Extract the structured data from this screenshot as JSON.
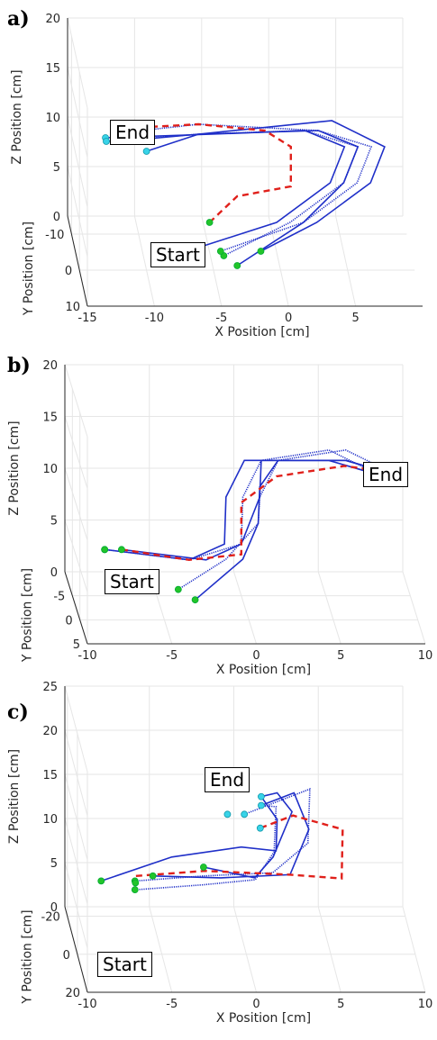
{
  "chart_data": [
    {
      "panel_label": "a)",
      "type": "line",
      "projection": "3d",
      "xlabel": "X Position [cm]",
      "ylabel": "Y Position [cm]",
      "zlabel": "Z Position [cm]",
      "xticks": [
        "-15",
        "-10",
        "-5",
        "0",
        "5"
      ],
      "yticks": [
        "-10",
        "0",
        "10"
      ],
      "zticks": [
        "0",
        "5",
        "10",
        "15",
        "20"
      ],
      "xlim": [
        -15,
        10
      ],
      "ylim": [
        -15,
        10
      ],
      "zlim": [
        0,
        20
      ],
      "grid": true,
      "annotations": [
        "End",
        "Start"
      ],
      "reference_color": "#e0201b",
      "trajectory_color": "#1f2fc8",
      "start_marker_color": "#22c42a",
      "end_marker_color": "#38d3e8",
      "reference_path": [
        [
          -5,
          -5,
          3
        ],
        [
          -3,
          -4,
          6
        ],
        [
          1,
          -4,
          7
        ],
        [
          1,
          -4,
          11
        ],
        [
          -1,
          -3,
          13
        ],
        [
          -6,
          -2,
          14
        ],
        [
          -11,
          -1,
          14
        ]
      ],
      "trajectories": [
        [
          [
            -6,
            -6,
            0
          ],
          [
            0,
            -5,
            3
          ],
          [
            4,
            -5,
            7
          ],
          [
            5,
            -4,
            11
          ],
          [
            2,
            -3,
            13
          ],
          [
            -5,
            -2,
            13
          ],
          [
            -13,
            -1,
            13
          ]
        ],
        [
          [
            -4,
            -4,
            0
          ],
          [
            1,
            -5,
            3
          ],
          [
            5,
            -5,
            7
          ],
          [
            6,
            -4,
            11
          ],
          [
            2,
            -3,
            13
          ],
          [
            -6,
            -2,
            13
          ],
          [
            -13,
            0,
            13
          ]
        ],
        [
          [
            -3,
            -4,
            -1
          ],
          [
            2,
            -5,
            3
          ],
          [
            5,
            -5,
            7
          ],
          [
            6,
            -4,
            11
          ],
          [
            3,
            -3,
            13
          ],
          [
            -6,
            -2,
            13
          ],
          [
            -12,
            0,
            13
          ]
        ],
        [
          [
            -4,
            -8,
            -1
          ],
          [
            2,
            -5,
            3
          ],
          [
            6,
            -5,
            7
          ],
          [
            7,
            -4,
            11
          ],
          [
            3,
            -3,
            13
          ],
          [
            -6,
            -2,
            14
          ],
          [
            -11,
            0,
            14
          ]
        ],
        [
          [
            -1,
            -8,
            -1
          ],
          [
            3,
            -5,
            3
          ],
          [
            7,
            -5,
            7
          ],
          [
            8,
            -4,
            11
          ],
          [
            4,
            -3,
            14
          ],
          [
            -6,
            -2,
            13
          ],
          [
            -10,
            0,
            12
          ]
        ]
      ],
      "start_points": [
        [
          -6,
          -6,
          0
        ],
        [
          -4,
          -4,
          0
        ],
        [
          -3,
          -4,
          -1
        ],
        [
          -4,
          -8,
          -1
        ],
        [
          -1,
          -8,
          -1
        ],
        [
          -5,
          -5,
          3
        ]
      ],
      "end_points": [
        [
          -13,
          -1,
          13
        ],
        [
          -13,
          0,
          13
        ],
        [
          -12,
          0,
          13
        ],
        [
          -11,
          0,
          14
        ],
        [
          -10,
          0,
          12
        ]
      ]
    },
    {
      "panel_label": "b)",
      "type": "line",
      "projection": "3d",
      "xlabel": "X Position [cm]",
      "ylabel": "Y Position [cm]",
      "zlabel": "Z Position [cm]",
      "xticks": [
        "-10",
        "-5",
        "0",
        "5",
        "10"
      ],
      "yticks": [
        "-5",
        "0",
        "5"
      ],
      "zticks": [
        "0",
        "5",
        "10",
        "15",
        "20"
      ],
      "xlim": [
        -10,
        10
      ],
      "ylim": [
        -10,
        5
      ],
      "zlim": [
        0,
        20
      ],
      "grid": true,
      "annotations": [
        "End",
        "Start"
      ],
      "reference_color": "#e0201b",
      "trajectory_color": "#1f2fc8",
      "start_marker_color": "#22c42a",
      "end_marker_color": "#38d3e8",
      "reference_path": [
        [
          -7,
          -6,
          4
        ],
        [
          -3,
          -6,
          3
        ],
        [
          0,
          -5,
          4
        ],
        [
          0,
          -5,
          9
        ],
        [
          2,
          -4,
          12
        ],
        [
          6,
          -4,
          13
        ],
        [
          8,
          -3,
          13
        ]
      ],
      "trajectories": [
        [
          [
            -8,
            -6,
            4
          ],
          [
            -3,
            -6,
            3
          ],
          [
            -1,
            -5,
            5
          ],
          [
            -1,
            -4,
            10
          ],
          [
            0,
            -3,
            14
          ],
          [
            5,
            -3,
            14
          ],
          [
            8,
            -2,
            13
          ]
        ],
        [
          [
            -8,
            -6,
            4
          ],
          [
            -3,
            -6,
            3
          ],
          [
            0,
            -5,
            5
          ],
          [
            0,
            -4,
            10
          ],
          [
            1,
            -3,
            14
          ],
          [
            5,
            -3,
            15
          ],
          [
            8,
            -2,
            13
          ]
        ],
        [
          [
            -7,
            -6,
            4
          ],
          [
            -2,
            -6,
            3
          ],
          [
            0,
            -5,
            5
          ],
          [
            1,
            -4,
            10
          ],
          [
            1,
            -3,
            14
          ],
          [
            6,
            -3,
            14
          ],
          [
            9,
            -2,
            13
          ]
        ],
        [
          [
            -4,
            -2,
            2
          ],
          [
            -1,
            -4,
            4
          ],
          [
            1,
            -5,
            7
          ],
          [
            1,
            -4,
            10
          ],
          [
            2,
            -3,
            14
          ],
          [
            6,
            -3,
            15
          ],
          [
            9,
            -2,
            13
          ]
        ],
        [
          [
            -3,
            -2,
            1
          ],
          [
            0,
            -4,
            4
          ],
          [
            1,
            -5,
            7
          ],
          [
            1,
            -4,
            11
          ],
          [
            2,
            -3,
            14
          ],
          [
            6,
            -3,
            14
          ],
          [
            9,
            -2,
            13
          ]
        ]
      ],
      "start_points": [
        [
          -8,
          -6,
          4
        ],
        [
          -8,
          -6,
          4
        ],
        [
          -7,
          -6,
          4
        ],
        [
          -4,
          -2,
          2
        ],
        [
          -3,
          -2,
          1
        ]
      ],
      "end_points": [
        [
          8,
          -2,
          13
        ],
        [
          8,
          -2,
          13
        ],
        [
          9,
          -2,
          13
        ],
        [
          9,
          -2,
          13
        ],
        [
          9,
          -2,
          13
        ]
      ]
    },
    {
      "panel_label": "c)",
      "type": "line",
      "projection": "3d",
      "xlabel": "X Position [cm]",
      "ylabel": "Y Position [cm]",
      "zlabel": "Z Position [cm]",
      "xticks": [
        "-10",
        "-5",
        "0",
        "5",
        "10"
      ],
      "yticks": [
        "-20",
        "0",
        "20"
      ],
      "zticks": [
        "0",
        "5",
        "10",
        "15",
        "20",
        "25"
      ],
      "xlim": [
        -10,
        10
      ],
      "ylim": [
        -25,
        20
      ],
      "zlim": [
        0,
        25
      ],
      "grid": true,
      "annotations": [
        "End",
        "Start"
      ],
      "reference_color": "#e0201b",
      "trajectory_color": "#1f2fc8",
      "start_marker_color": "#22c42a",
      "end_marker_color": "#38d3e8",
      "reference_path": [
        [
          -6,
          -18,
          5
        ],
        [
          -2,
          -16,
          6
        ],
        [
          3,
          -14,
          6
        ],
        [
          6,
          -12,
          6
        ],
        [
          6,
          -10,
          12
        ],
        [
          3,
          -8,
          14
        ],
        [
          1,
          -6,
          13
        ]
      ],
      "trajectories": [
        [
          [
            -8,
            -20,
            4
          ],
          [
            -4,
            -14,
            8
          ],
          [
            0,
            -10,
            10
          ],
          [
            2,
            -8,
            10
          ],
          [
            2,
            -6,
            14
          ],
          [
            1,
            -4,
            17
          ]
        ],
        [
          [
            -6,
            -20,
            3
          ],
          [
            -2,
            -18,
            4
          ],
          [
            1,
            -16,
            5
          ],
          [
            2,
            -12,
            9
          ],
          [
            2,
            -8,
            15
          ],
          [
            1,
            -4,
            16
          ]
        ],
        [
          [
            -5,
            -18,
            5
          ],
          [
            -1,
            -17,
            5
          ],
          [
            3,
            -14,
            6
          ],
          [
            4,
            -10,
            12
          ],
          [
            3,
            -6,
            17
          ],
          [
            1,
            -4,
            16
          ]
        ],
        [
          [
            -6,
            -20,
            4
          ],
          [
            -2,
            -18,
            5
          ],
          [
            2,
            -15,
            6
          ],
          [
            4,
            -12,
            10
          ],
          [
            4,
            -8,
            17
          ],
          [
            0,
            -4,
            15
          ]
        ],
        [
          [
            -2,
            -18,
            6
          ],
          [
            1,
            -17,
            5
          ],
          [
            2,
            -14,
            8
          ],
          [
            3,
            -10,
            14
          ],
          [
            2,
            -6,
            17
          ],
          [
            1,
            -4,
            17
          ]
        ]
      ],
      "start_points": [
        [
          -8,
          -20,
          4
        ],
        [
          -6,
          -20,
          3
        ],
        [
          -5,
          -18,
          5
        ],
        [
          -6,
          -20,
          4
        ],
        [
          -2,
          -18,
          6
        ],
        [
          -6,
          -19,
          4
        ]
      ],
      "end_points": [
        [
          -1,
          -4,
          15
        ],
        [
          1,
          -4,
          17
        ],
        [
          1,
          -4,
          16
        ],
        [
          0,
          -4,
          15
        ],
        [
          1,
          -6,
          13
        ]
      ]
    }
  ]
}
